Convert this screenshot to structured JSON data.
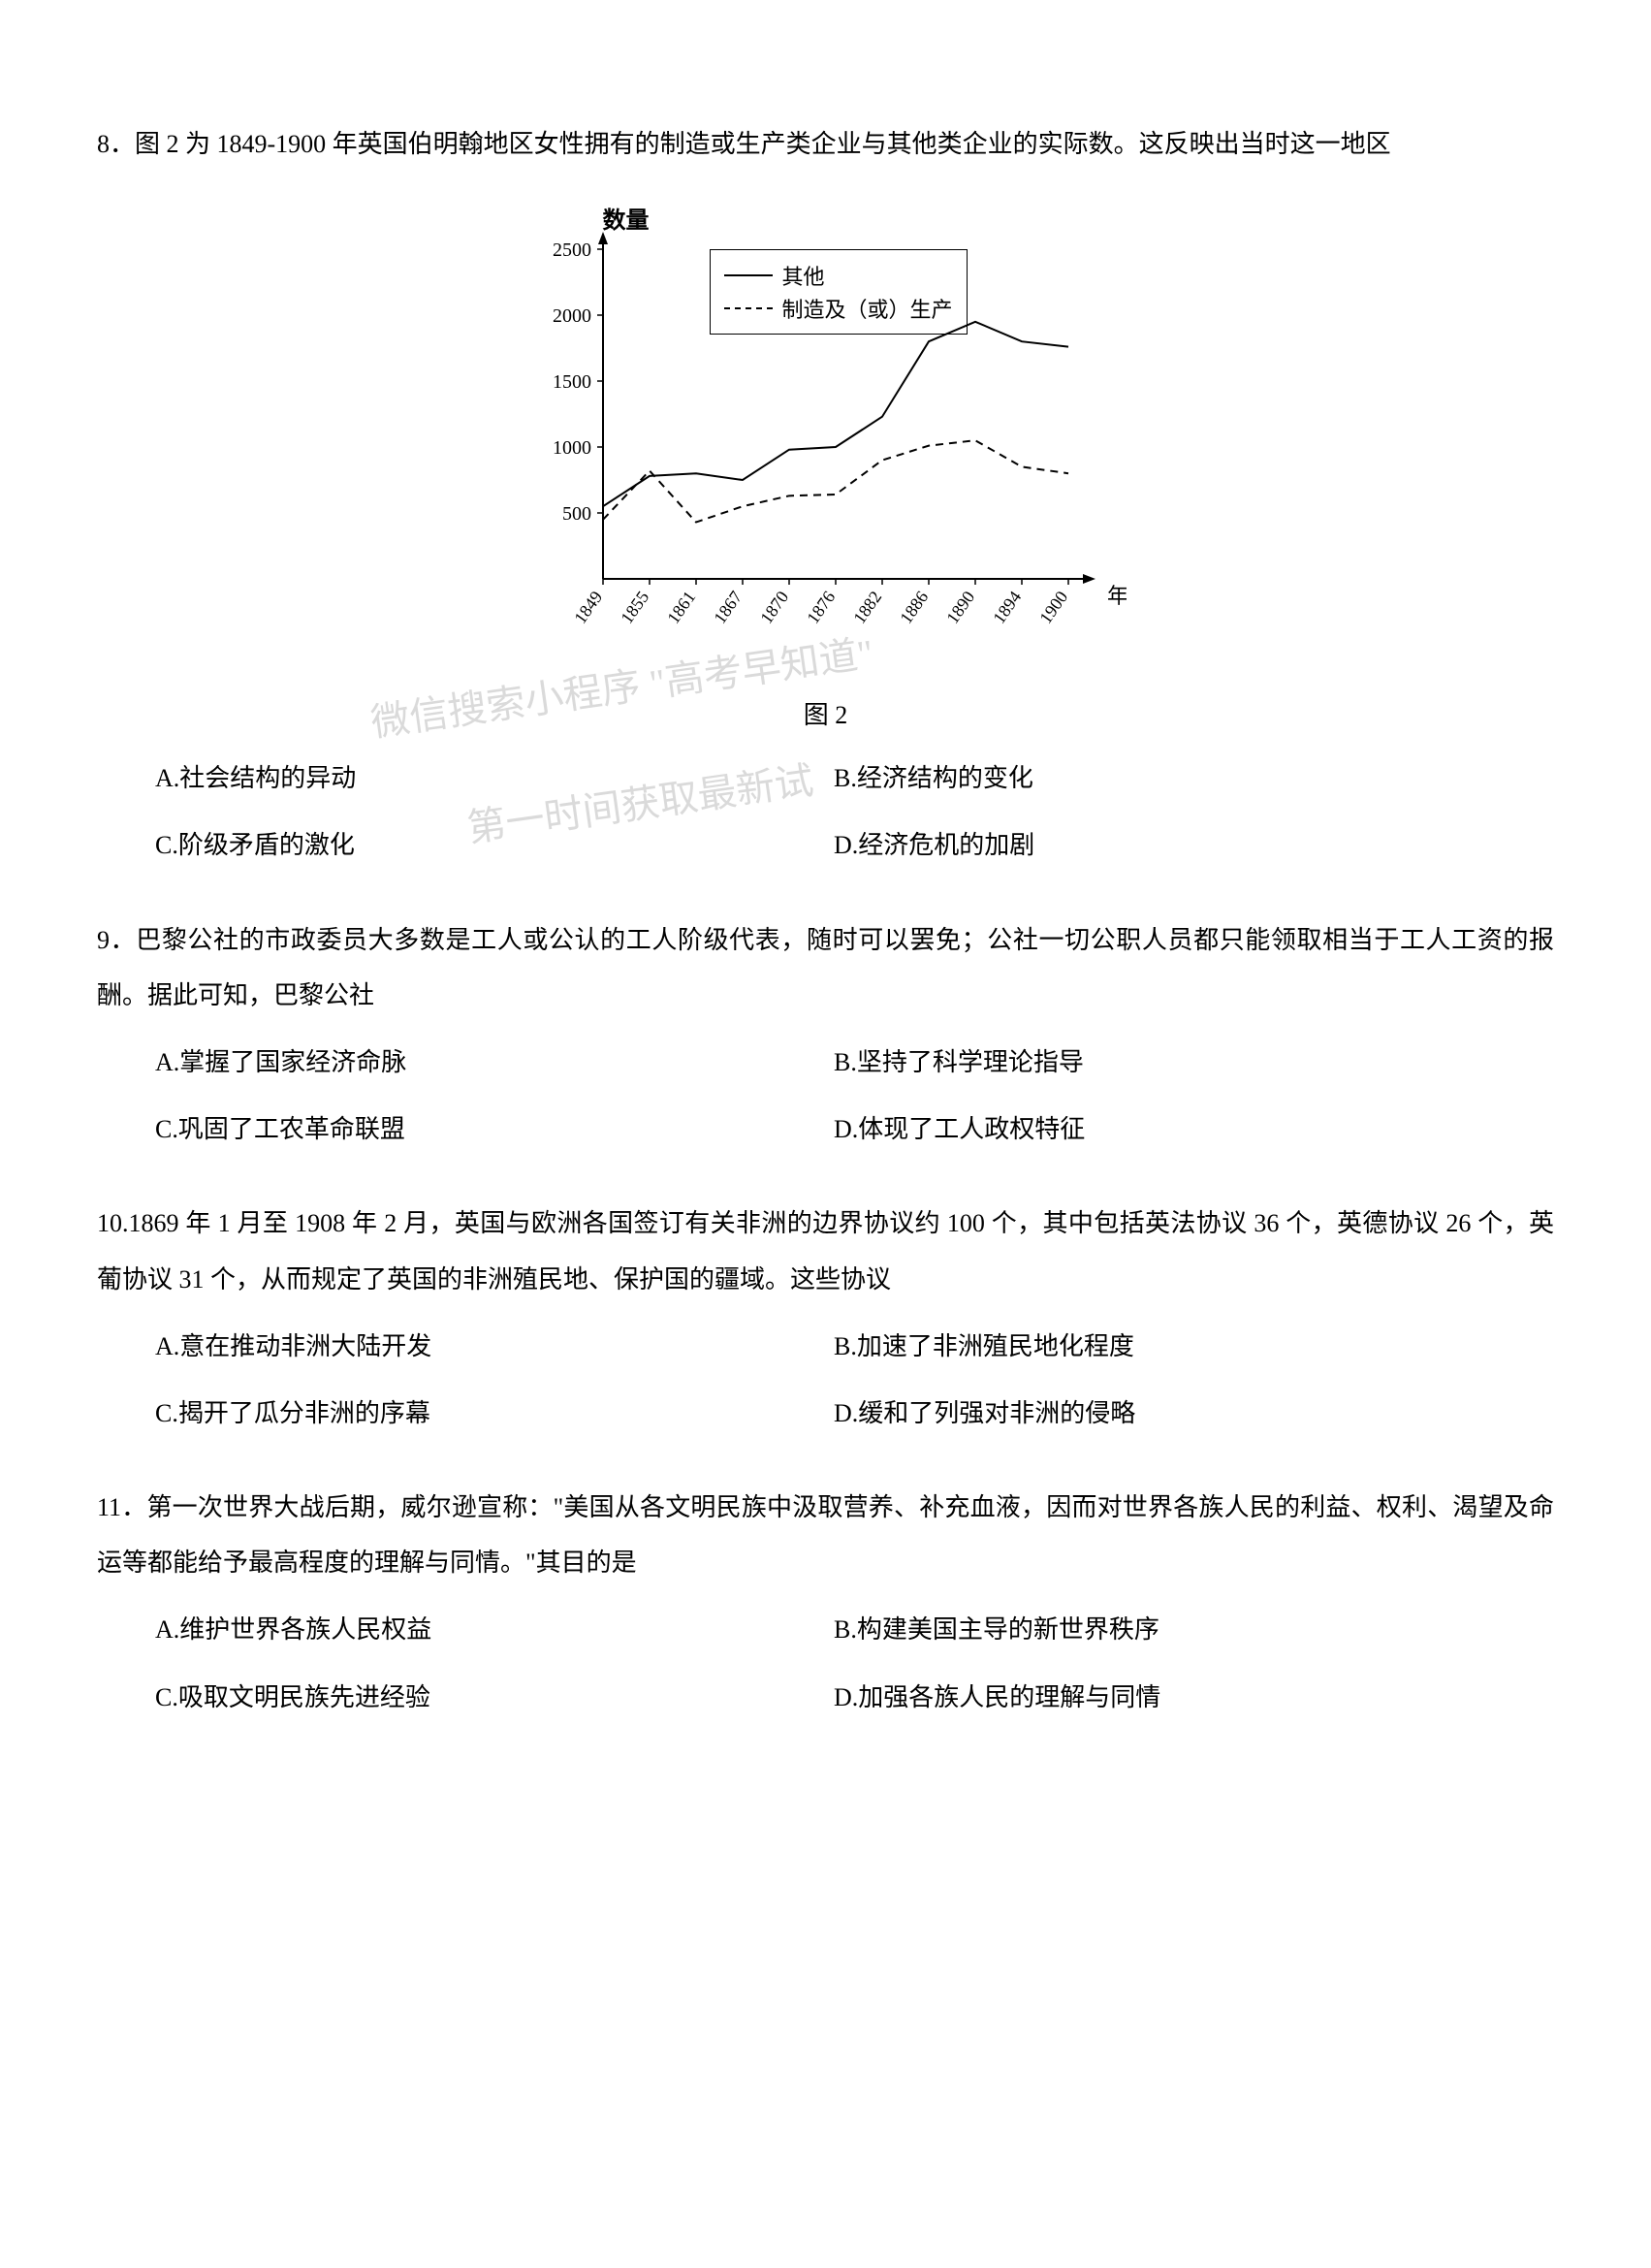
{
  "q8": {
    "number": "8．",
    "text": "图 2 为 1849-1900 年英国伯明翰地区女性拥有的制造或生产类企业与其他类企业的实际数。这反映出当时这一地区",
    "figure_label": "图 2",
    "options": {
      "A": "A.社会结构的异动",
      "B": "B.经济结构的变化",
      "C": "C.阶级矛盾的激化",
      "D": "D.经济危机的加剧"
    }
  },
  "chart": {
    "type": "line",
    "ylabel": "数量",
    "xlabel": "年份",
    "ylim": [
      0,
      2500
    ],
    "ytick_step": 500,
    "yticks": [
      500,
      1000,
      1500,
      2000,
      2500
    ],
    "x_categories": [
      "1849",
      "1855",
      "1861",
      "1867",
      "1870",
      "1876",
      "1882",
      "1886",
      "1890",
      "1894",
      "1900"
    ],
    "series": [
      {
        "name": "其他",
        "style": "solid",
        "color": "#000000",
        "values": [
          550,
          780,
          800,
          750,
          980,
          1000,
          1230,
          1800,
          1950,
          1800,
          1760
        ]
      },
      {
        "name": "制造及（或）生产",
        "style": "dashed",
        "color": "#000000",
        "values": [
          450,
          820,
          430,
          550,
          630,
          640,
          900,
          1010,
          1050,
          850,
          800
        ]
      }
    ],
    "legend_labels": {
      "solid": "其他",
      "dashed": "制造及（或）生产"
    },
    "background_color": "#ffffff",
    "axis_color": "#000000",
    "label_fontsize": 20,
    "line_width": 2
  },
  "watermark": {
    "line1": "微信搜索小程序  \"高考早知道\"",
    "line2": "第一时间获取最新试"
  },
  "q9": {
    "number": "9．",
    "text": "巴黎公社的市政委员大多数是工人或公认的工人阶级代表，随时可以罢免；公社一切公职人员都只能领取相当于工人工资的报酬。据此可知，巴黎公社",
    "options": {
      "A": "A.掌握了国家经济命脉",
      "B": "B.坚持了科学理论指导",
      "C": "C.巩固了工农革命联盟",
      "D": "D.体现了工人政权特征"
    }
  },
  "q10": {
    "number": "10.",
    "text": "1869 年 1 月至 1908 年 2 月，英国与欧洲各国签订有关非洲的边界协议约 100 个，其中包括英法协议 36 个，英德协议 26 个，英葡协议 31 个，从而规定了英国的非洲殖民地、保护国的疆域。这些协议",
    "options": {
      "A": "A.意在推动非洲大陆开发",
      "B": "B.加速了非洲殖民地化程度",
      "C": "C.揭开了瓜分非洲的序幕",
      "D": "D.缓和了列强对非洲的侵略"
    }
  },
  "q11": {
    "number": "11．",
    "text": "第一次世界大战后期，威尔逊宣称：\"美国从各文明民族中汲取营养、补充血液，因而对世界各族人民的利益、权利、渴望及命运等都能给予最高程度的理解与同情。\"其目的是",
    "options": {
      "A": "A.维护世界各族人民权益",
      "B": "B.构建美国主导的新世界秩序",
      "C": "C.吸取文明民族先进经验",
      "D": "D.加强各族人民的理解与同情"
    }
  }
}
